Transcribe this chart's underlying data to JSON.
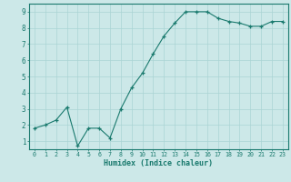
{
  "x": [
    0,
    1,
    2,
    3,
    4,
    5,
    6,
    7,
    8,
    9,
    10,
    11,
    12,
    13,
    14,
    15,
    16,
    17,
    18,
    19,
    20,
    21,
    22,
    23
  ],
  "y": [
    1.8,
    2.0,
    2.3,
    3.1,
    0.7,
    1.8,
    1.8,
    1.2,
    3.0,
    4.3,
    5.2,
    6.4,
    7.5,
    8.3,
    9.0,
    9.0,
    9.0,
    8.6,
    8.4,
    8.3,
    8.1,
    8.1,
    8.4,
    8.4
  ],
  "line_color": "#1a7a6e",
  "marker_color": "#1a7a6e",
  "bg_color": "#cce8e8",
  "grid_color": "#aad4d4",
  "xlabel": "Humidex (Indice chaleur)",
  "xlabel_color": "#1a7a6e",
  "tick_color": "#1a7a6e",
  "ylim": [
    0.5,
    9.5
  ],
  "xlim": [
    -0.5,
    23.5
  ],
  "yticks": [
    1,
    2,
    3,
    4,
    5,
    6,
    7,
    8,
    9
  ],
  "xticks": [
    0,
    1,
    2,
    3,
    4,
    5,
    6,
    7,
    8,
    9,
    10,
    11,
    12,
    13,
    14,
    15,
    16,
    17,
    18,
    19,
    20,
    21,
    22,
    23
  ],
  "spine_color": "#1a7a6e",
  "linewidth": 0.8,
  "markersize": 3.5
}
